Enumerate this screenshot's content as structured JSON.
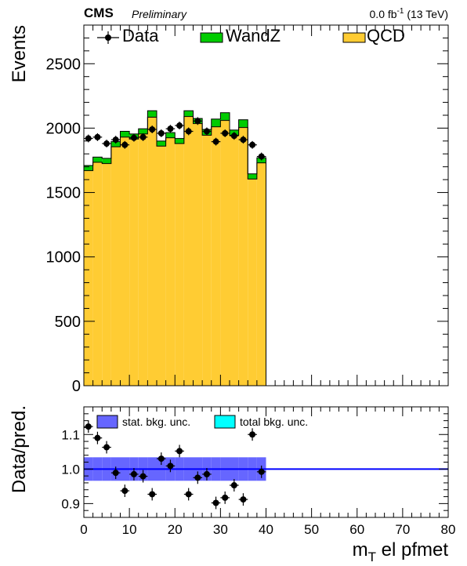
{
  "header": {
    "experiment": "CMS",
    "status": "Preliminary",
    "lumi_value": "0.0 fb",
    "lumi_exp": "-1",
    "lumi_energy": " (13 TeV)"
  },
  "colors": {
    "qcd": "#ffcc33",
    "wandz": "#00cc00",
    "stat_band": "#6666ff",
    "total_band": "#00ffff",
    "ratio_line": "#0000ff",
    "data": "#000000"
  },
  "chart_data": [
    {
      "type": "bar",
      "subtype": "stacked-histogram-with-data-points",
      "ylabel": "Events",
      "xlim": [
        0,
        80
      ],
      "ylim": [
        0,
        2800
      ],
      "yticks": [
        0,
        500,
        1000,
        1500,
        2000,
        2500
      ],
      "bin_edges": [
        0,
        2,
        4,
        6,
        8,
        10,
        12,
        14,
        16,
        18,
        20,
        22,
        24,
        26,
        28,
        30,
        32,
        34,
        36,
        38,
        40
      ],
      "legend": {
        "placement": "top",
        "entries": [
          {
            "label": "Data",
            "style": "marker"
          },
          {
            "label": "WandZ",
            "style": "fill",
            "series": "WandZ"
          },
          {
            "label": "QCD",
            "style": "fill",
            "series": "QCD"
          }
        ]
      },
      "series": [
        {
          "name": "QCD",
          "values": [
            1670,
            1735,
            1725,
            1855,
            1930,
            1915,
            1955,
            2085,
            1860,
            1925,
            1880,
            2090,
            2035,
            1945,
            2010,
            2060,
            1945,
            2005,
            1605,
            1730
          ]
        },
        {
          "name": "WandZ",
          "values": [
            40,
            40,
            40,
            40,
            45,
            40,
            40,
            50,
            40,
            40,
            40,
            45,
            40,
            45,
            60,
            60,
            40,
            60,
            40,
            40
          ]
        },
        {
          "name": "Data",
          "values": [
            1920,
            1930,
            1880,
            1910,
            1870,
            1925,
            1930,
            1990,
            1960,
            1995,
            2020,
            1975,
            2055,
            1975,
            1895,
            1960,
            1940,
            1910,
            1870,
            1780
          ],
          "errors": [
            30,
            30,
            30,
            30,
            30,
            30,
            30,
            30,
            30,
            30,
            30,
            30,
            30,
            30,
            30,
            30,
            30,
            30,
            30,
            30
          ]
        }
      ]
    },
    {
      "type": "scatter",
      "subtype": "ratio-panel",
      "xlabel": "m",
      "xlabel_sub": "T",
      "xlabel_rest": " el pfmet",
      "ylabel": "Data/pred.",
      "xlim": [
        0,
        80
      ],
      "ylim": [
        0.86,
        1.18
      ],
      "yticks": [
        0.9,
        1.0,
        1.1
      ],
      "ytick_labels": [
        "0.9",
        "1.0",
        "1.1"
      ],
      "xticks": [
        0,
        10,
        20,
        30,
        40,
        50,
        60,
        70,
        80
      ],
      "xtick_labels": [
        "0",
        "10",
        "20",
        "30",
        "40",
        "50",
        "60",
        "70",
        "80"
      ],
      "reference_line": 1.0,
      "legend": {
        "placement": "top-left",
        "entries": [
          {
            "label": "stat. bkg. unc.",
            "style": "fill"
          },
          {
            "label": "total bkg. unc.",
            "style": "fill"
          }
        ]
      },
      "band_halfwidth": [
        0.034,
        0.034,
        0.034,
        0.034,
        0.034,
        0.034,
        0.034,
        0.034,
        0.034,
        0.034,
        0.034,
        0.034,
        0.034,
        0.034,
        0.034,
        0.034,
        0.034,
        0.034,
        0.034,
        0.034
      ],
      "series": [
        {
          "name": "Data/pred.",
          "x": [
            1,
            3,
            5,
            7,
            9,
            11,
            13,
            15,
            17,
            19,
            21,
            23,
            25,
            27,
            29,
            31,
            33,
            35,
            37,
            39
          ],
          "values": [
            1.123,
            1.09,
            1.063,
            0.989,
            0.937,
            0.985,
            0.979,
            0.927,
            1.03,
            1.009,
            1.052,
            0.927,
            0.975,
            0.985,
            0.902,
            0.917,
            0.953,
            0.912,
            1.1,
            0.992
          ],
          "errors": [
            0.018,
            0.018,
            0.018,
            0.018,
            0.018,
            0.018,
            0.018,
            0.018,
            0.018,
            0.018,
            0.018,
            0.018,
            0.018,
            0.018,
            0.018,
            0.018,
            0.018,
            0.018,
            0.018,
            0.018
          ]
        }
      ]
    }
  ]
}
